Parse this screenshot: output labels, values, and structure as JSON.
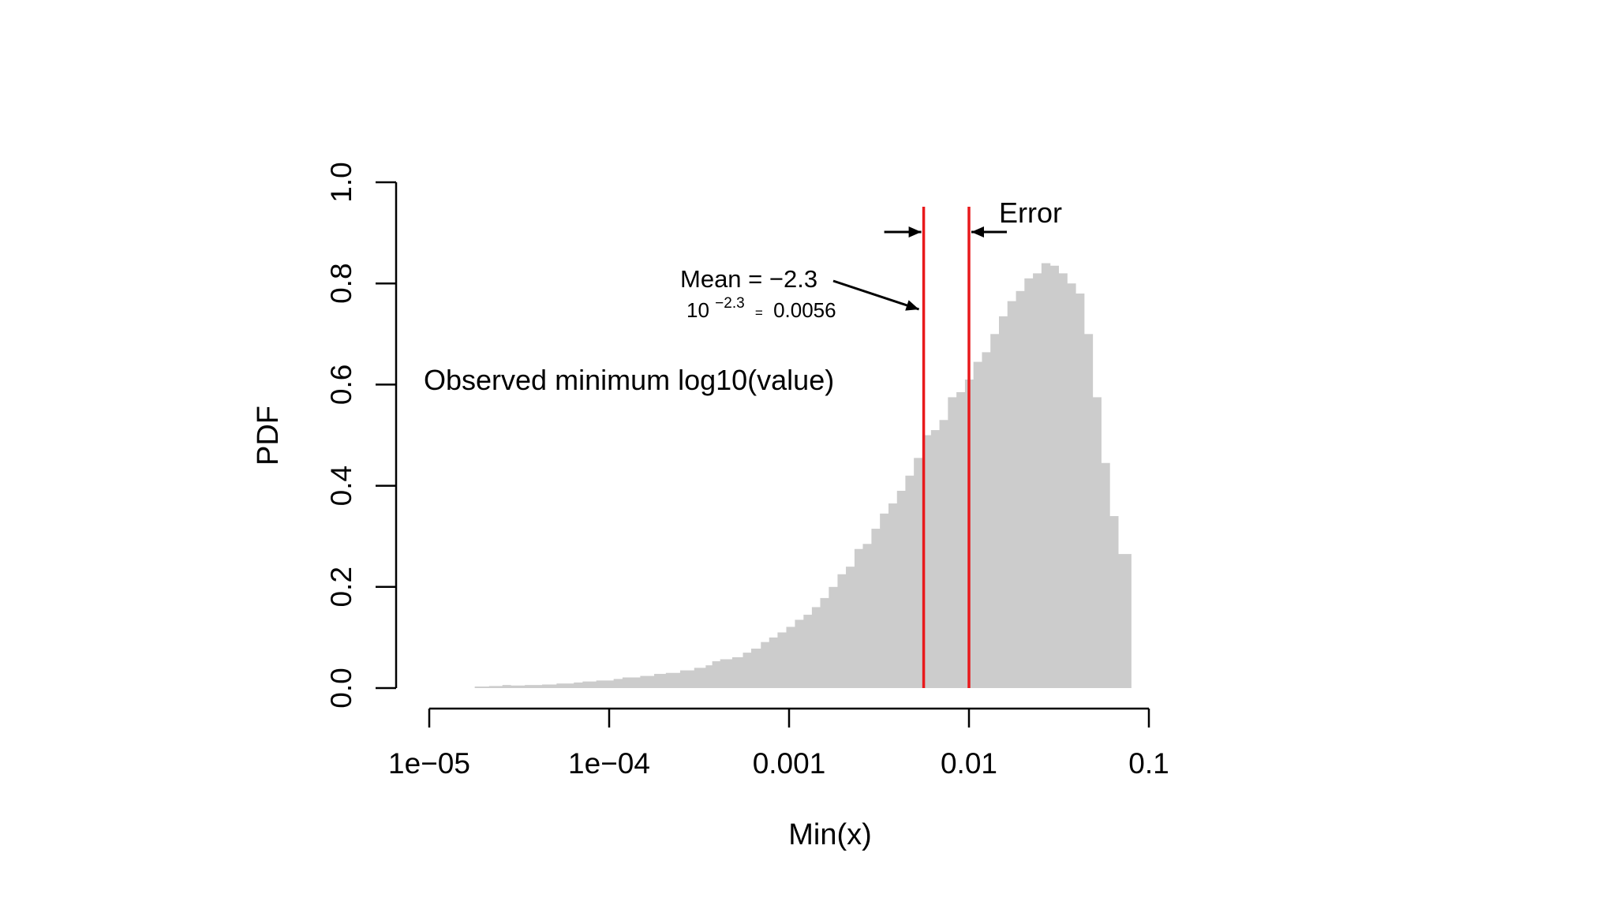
{
  "chart_data": {
    "type": "bar",
    "title": "",
    "xlabel": "Min(x)",
    "ylabel": "PDF",
    "x_scale": "log10",
    "xlim": [
      1e-05,
      0.1
    ],
    "ylim": [
      0,
      1.0
    ],
    "x_ticks": [
      "1e−05",
      "1e−04",
      "0.001",
      "0.01",
      "0.1"
    ],
    "y_ticks": [
      "0.0",
      "0.2",
      "0.4",
      "0.6",
      "0.8",
      "1.0"
    ],
    "grid": false,
    "bar_color": "#cccccc",
    "bins": {
      "x_start": [
        1.79e-05,
        2.15e-05,
        2.55e-05,
        2.83e-05,
        3.4e-05,
        4.24e-05,
        5.1e-05,
        6.36e-05,
        7.12e-05,
        8.48e-05,
        0.0001059,
        0.0001186,
        0.0001488,
        0.0001779,
        0.0002066,
        0.000248,
        0.000297,
        0.000344,
        0.000374,
        0.000414,
        0.000483,
        0.000554,
        0.000616,
        0.000697,
        0.000775,
        0.000863,
        0.000965,
        0.001078,
        0.001203,
        0.001339,
        0.00149,
        0.001663,
        0.00186,
        0.00207,
        0.00231,
        0.00257,
        0.00287,
        0.0032,
        0.00357,
        0.00398,
        0.00443,
        0.00494,
        0.00551,
        0.00615,
        0.00685,
        0.00764,
        0.00852,
        0.0095,
        0.01059,
        0.01181,
        0.01316,
        0.01468,
        0.01636,
        0.01825,
        0.02034,
        0.02268,
        0.02529,
        0.0282,
        0.03144,
        0.03506,
        0.03909,
        0.04359,
        0.0486,
        0.05419,
        0.06042,
        0.06738
      ],
      "density": [
        0.003,
        0.004,
        0.006,
        0.005,
        0.006,
        0.007,
        0.009,
        0.011,
        0.013,
        0.015,
        0.018,
        0.021,
        0.024,
        0.028,
        0.03,
        0.035,
        0.04,
        0.045,
        0.053,
        0.057,
        0.061,
        0.07,
        0.078,
        0.091,
        0.1,
        0.11,
        0.121,
        0.135,
        0.145,
        0.16,
        0.178,
        0.2,
        0.225,
        0.24,
        0.275,
        0.285,
        0.315,
        0.345,
        0.365,
        0.39,
        0.42,
        0.455,
        0.5,
        0.51,
        0.53,
        0.575,
        0.585,
        0.61,
        0.645,
        0.664,
        0.7,
        0.735,
        0.765,
        0.785,
        0.81,
        0.82,
        0.84,
        0.835,
        0.82,
        0.8,
        0.78,
        0.7,
        0.575,
        0.445,
        0.34,
        0.265
      ]
    },
    "annotations": {
      "observed_label": "Observed minimum log10(value)",
      "error_label": "Error",
      "mean_label": "Mean = −2.3",
      "power_base": "10",
      "power_exponent": "−2.3",
      "power_equals": "=",
      "power_value": "0.0056"
    },
    "vlines": {
      "color": "#e8191c",
      "x": [
        0.0056,
        0.01
      ]
    }
  }
}
